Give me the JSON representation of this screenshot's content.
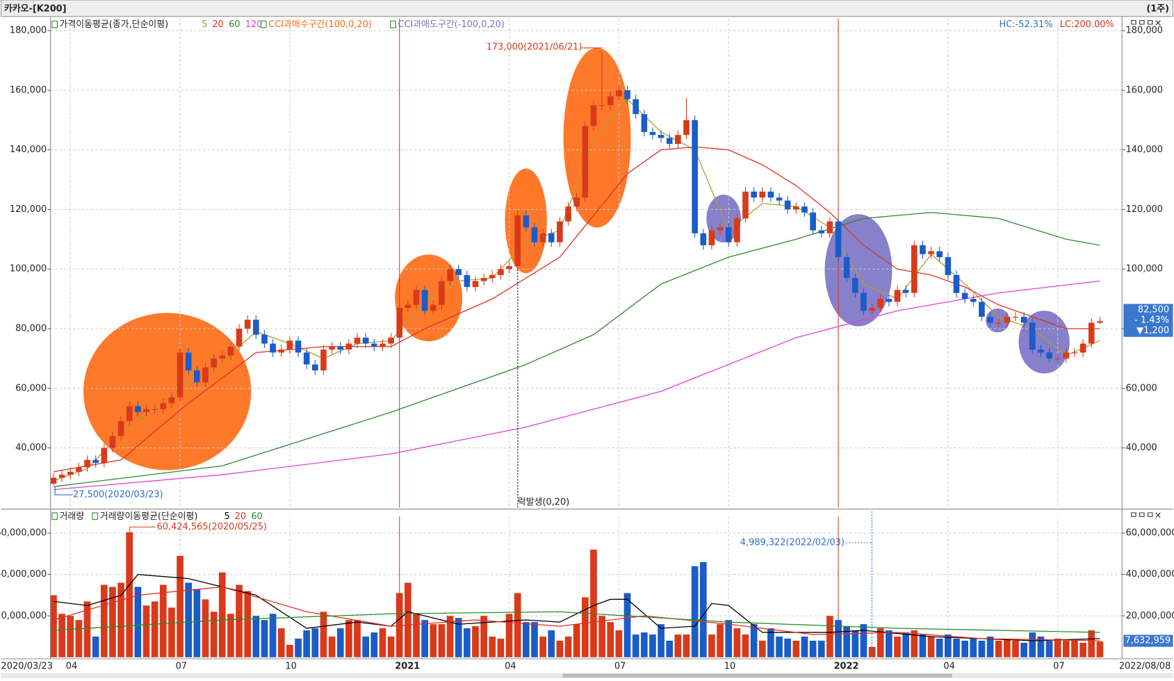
{
  "header": {
    "title": "카카오-[K200]",
    "period": "(1주)",
    "panel_icons": "ㅁㅁㅁ×"
  },
  "chart_data": [
    {
      "type": "candlestick",
      "legend_title": "가격이동평균(종가,단순이평)",
      "overbought_label": "CCI과매수구간(100,0,20)",
      "oversold_label": "CCI과매도구간(-100,0,20)",
      "hc": "HC:-52.31%",
      "lc": "LC:200.00%",
      "annotations": [
        "173,000(2021/06/21)",
        "27,500(2020/03/23)",
        "락발생(0,20)"
      ],
      "last_price": "82,500",
      "change_pct": "- 1.43%",
      "change": "▼1,200",
      "up_color": "#d93a1a",
      "down_color": "#1a5cc8",
      "grid": true,
      "ylim": [
        20000,
        184000
      ],
      "yticks": [
        {
          "value": 40000,
          "label": "40,000"
        },
        {
          "value": 60000,
          "label": "60,000"
        },
        {
          "value": 80000,
          "label": "80,000"
        },
        {
          "value": 100000,
          "label": "100,000"
        },
        {
          "value": 120000,
          "label": "120,000"
        },
        {
          "value": 140000,
          "label": "140,000"
        },
        {
          "value": 160000,
          "label": "160,000"
        },
        {
          "value": 180000,
          "label": "180,000"
        }
      ],
      "categories": [
        "2020/03/23",
        null,
        "04",
        null,
        null,
        null,
        null,
        null,
        null,
        null,
        null,
        null,
        null,
        null,
        null,
        "07",
        null,
        null,
        null,
        null,
        null,
        null,
        null,
        null,
        null,
        null,
        null,
        null,
        "10",
        null,
        null,
        null,
        null,
        null,
        null,
        null,
        null,
        null,
        null,
        null,
        null,
        "2021",
        null,
        null,
        null,
        null,
        null,
        null,
        null,
        null,
        null,
        null,
        null,
        null,
        "04",
        null,
        null,
        null,
        null,
        null,
        null,
        null,
        null,
        null,
        null,
        null,
        null,
        "07",
        null,
        null,
        null,
        null,
        null,
        null,
        null,
        null,
        null,
        null,
        null,
        null,
        "10",
        null,
        null,
        null,
        null,
        null,
        null,
        null,
        null,
        null,
        null,
        null,
        null,
        "2022",
        null,
        null,
        null,
        null,
        null,
        null,
        null,
        null,
        null,
        null,
        null,
        null,
        "04",
        null,
        null,
        null,
        null,
        null,
        null,
        null,
        null,
        null,
        null,
        null,
        null,
        "07",
        null,
        null,
        null,
        null,
        "2022/08/08"
      ],
      "open": [
        28000,
        30000,
        31000,
        32000,
        33500,
        36000,
        35000,
        40000,
        44000,
        49000,
        54000,
        52000,
        53000,
        53000,
        55000,
        57000,
        72000,
        66000,
        62000,
        67000,
        70000,
        71000,
        74000,
        80000,
        83000,
        78000,
        75000,
        72000,
        73000,
        76000,
        72000,
        68000,
        66000,
        73000,
        74000,
        73000,
        75000,
        77000,
        75000,
        74000,
        75000,
        77000,
        87000,
        88000,
        93000,
        86000,
        88000,
        96000,
        100000,
        98000,
        94000,
        96000,
        97000,
        98000,
        100000,
        101000,
        118000,
        114000,
        109000,
        112000,
        109000,
        116000,
        121000,
        124000,
        148000,
        155000,
        155000,
        158000,
        160000,
        157000,
        152000,
        146000,
        145000,
        144000,
        142000,
        145000,
        150000,
        112000,
        108000,
        113000,
        114000,
        109000,
        117000,
        126000,
        124000,
        126000,
        124000,
        123000,
        120000,
        121000,
        119000,
        113000,
        112000,
        116000,
        104000,
        97000,
        92000,
        86000,
        87000,
        90000,
        89000,
        93000,
        92000,
        108000,
        105000,
        106000,
        104000,
        98000,
        92000,
        90000,
        89000,
        84000,
        82000,
        82000,
        84000,
        84000,
        82000,
        73000,
        72000,
        70000,
        70000,
        72000,
        72000,
        75000,
        82000
      ],
      "high": [
        31500,
        32500,
        33500,
        35000,
        37500,
        37500,
        41500,
        45500,
        50500,
        55500,
        55500,
        54500,
        54500,
        56500,
        58500,
        73500,
        73500,
        67500,
        68500,
        71500,
        72500,
        75500,
        81500,
        84500,
        84500,
        79500,
        76500,
        74500,
        77500,
        77500,
        73500,
        69500,
        74500,
        75500,
        75500,
        76500,
        78500,
        78500,
        76500,
        76500,
        78500,
        88500,
        89500,
        94500,
        94500,
        89500,
        97500,
        101500,
        101500,
        99500,
        97500,
        98500,
        99500,
        101500,
        102500,
        119500,
        119500,
        115500,
        113500,
        113500,
        117500,
        122500,
        125500,
        149500,
        156500,
        173000,
        159500,
        161500,
        161500,
        158500,
        153500,
        147500,
        146500,
        145500,
        146500,
        157500,
        151500,
        113500,
        114500,
        115500,
        115500,
        118500,
        127500,
        127500,
        127500,
        127500,
        125500,
        124500,
        122500,
        122500,
        120500,
        114500,
        117500,
        117500,
        105500,
        98500,
        93500,
        88500,
        91500,
        91500,
        94500,
        94500,
        109500,
        109500,
        107500,
        107500,
        105500,
        99500,
        93500,
        91500,
        90500,
        85500,
        83500,
        85500,
        85500,
        85500,
        83500,
        74500,
        73500,
        71500,
        73500,
        73500,
        76500,
        83500,
        84000
      ],
      "low": [
        27500,
        28500,
        29500,
        30500,
        32000,
        33500,
        33500,
        38500,
        42500,
        47500,
        50500,
        50500,
        51500,
        51500,
        53500,
        55500,
        64500,
        60500,
        60500,
        65500,
        68500,
        69500,
        72500,
        78500,
        76500,
        73500,
        70500,
        70500,
        71500,
        70500,
        66500,
        64500,
        64500,
        71500,
        71500,
        71500,
        73500,
        73500,
        72500,
        72500,
        73500,
        75500,
        85500,
        86500,
        84500,
        84500,
        86500,
        94500,
        96500,
        92500,
        92500,
        94500,
        95500,
        96500,
        98500,
        99500,
        112500,
        107500,
        107500,
        107500,
        107500,
        114500,
        119500,
        122500,
        146500,
        153500,
        153500,
        156500,
        155500,
        150500,
        144500,
        143500,
        142500,
        140500,
        140500,
        143500,
        110500,
        106500,
        106500,
        111500,
        107500,
        107500,
        115500,
        122500,
        122500,
        122500,
        121500,
        118500,
        118500,
        117500,
        111500,
        110500,
        110500,
        102500,
        95500,
        90500,
        84500,
        84500,
        85500,
        87500,
        87500,
        90500,
        90500,
        103500,
        103500,
        102500,
        96500,
        90500,
        88500,
        87500,
        82500,
        80500,
        80500,
        80500,
        82500,
        80500,
        71500,
        70500,
        68500,
        68500,
        68500,
        70500,
        70500,
        73500,
        81500
      ],
      "close": [
        30000,
        31000,
        32000,
        33500,
        36000,
        35000,
        40000,
        44000,
        49000,
        54000,
        52000,
        53000,
        53000,
        55000,
        57000,
        72000,
        66000,
        62000,
        67000,
        70000,
        71000,
        74000,
        80000,
        83000,
        78000,
        75000,
        72000,
        73000,
        76000,
        72000,
        68000,
        66000,
        73000,
        74000,
        73000,
        75000,
        77000,
        75000,
        74000,
        75000,
        77000,
        87000,
        88000,
        93000,
        86000,
        88000,
        96000,
        100000,
        98000,
        94000,
        96000,
        97000,
        98000,
        100000,
        101000,
        118000,
        114000,
        109000,
        112000,
        109000,
        116000,
        121000,
        124000,
        148000,
        155000,
        155000,
        158000,
        160000,
        157000,
        152000,
        146000,
        145000,
        144000,
        142000,
        145000,
        150000,
        112000,
        108000,
        113000,
        114000,
        109000,
        117000,
        126000,
        124000,
        126000,
        124000,
        123000,
        120000,
        121000,
        119000,
        113000,
        112000,
        116000,
        104000,
        97000,
        92000,
        86000,
        87000,
        90000,
        89000,
        93000,
        92000,
        108000,
        105000,
        106000,
        104000,
        98000,
        92000,
        90000,
        89000,
        84000,
        82000,
        82000,
        84000,
        84000,
        82000,
        73000,
        72000,
        70000,
        70000,
        72000,
        72000,
        75000,
        82000,
        82500
      ],
      "series": [
        {
          "name": "5",
          "color": "#a8a030",
          "x": [
            0,
            4,
            8,
            12,
            16,
            20,
            24,
            28,
            32,
            36,
            40,
            44,
            48,
            52,
            56,
            60,
            64,
            68,
            72,
            76,
            80,
            84,
            88,
            92,
            96,
            100,
            104,
            108,
            112,
            116,
            120,
            124
          ],
          "values": [
            29000,
            33000,
            45000,
            53000,
            62000,
            69000,
            79000,
            75000,
            70000,
            75000,
            76000,
            89000,
            96000,
            97000,
            109000,
            113000,
            143000,
            157000,
            146000,
            140000,
            113000,
            122000,
            121000,
            114000,
            95000,
            90000,
            105000,
            95000,
            84000,
            80000,
            71000,
            76000
          ]
        },
        {
          "name": "20",
          "color": "#e03020",
          "x": [
            0,
            8,
            16,
            24,
            32,
            40,
            44,
            52,
            56,
            60,
            64,
            68,
            72,
            76,
            80,
            84,
            88,
            92,
            96,
            100,
            104,
            108,
            112,
            116,
            120,
            124
          ],
          "values": [
            32000,
            36000,
            55000,
            72000,
            74000,
            74000,
            80000,
            90000,
            97000,
            104000,
            118000,
            132000,
            140000,
            141000,
            140000,
            135000,
            128000,
            119000,
            108000,
            100000,
            98000,
            94000,
            88000,
            84000,
            80000,
            80000
          ]
        },
        {
          "name": "60",
          "color": "#2a8a2a",
          "x": [
            0,
            20,
            40,
            56,
            64,
            72,
            80,
            88,
            96,
            104,
            112,
            120,
            124
          ],
          "values": [
            27000,
            34000,
            52000,
            68000,
            78000,
            95000,
            104000,
            110000,
            117000,
            119000,
            117000,
            110000,
            108000
          ]
        },
        {
          "name": "120",
          "color": "#e040e0",
          "x": [
            0,
            20,
            40,
            56,
            72,
            88,
            100,
            112,
            124
          ],
          "values": [
            26000,
            31000,
            38000,
            47000,
            59000,
            77000,
            86000,
            92000,
            96000
          ]
        }
      ]
    },
    {
      "type": "bar",
      "legend_label": "거래량",
      "legend_title": "거래량이동평균(단순이평)",
      "annotations": [
        "60,424,565(2020/05/25)",
        "4,989,322(2022/02/03)"
      ],
      "last_value": "7,632,959",
      "grid": true,
      "ylim": [
        0,
        68000000
      ],
      "yticks": [
        {
          "value": 20000000,
          "label": "20,000,000"
        },
        {
          "value": 40000000,
          "label": "40,000,000"
        },
        {
          "value": 60000000,
          "label": "60,000,000"
        }
      ],
      "values": [
        30000000,
        21000000,
        20000000,
        18000000,
        27000000,
        10000000,
        35000000,
        34000000,
        36000000,
        60424565,
        34000000,
        25000000,
        27000000,
        35000000,
        24000000,
        49000000,
        36000000,
        33000000,
        28000000,
        22000000,
        41000000,
        21000000,
        35000000,
        32000000,
        20000000,
        18000000,
        21000000,
        14000000,
        6000000,
        9000000,
        13000000,
        14000000,
        22000000,
        10000000,
        14000000,
        18000000,
        18000000,
        10000000,
        12000000,
        14000000,
        10000000,
        31000000,
        36000000,
        21000000,
        18000000,
        16000000,
        16000000,
        20000000,
        19000000,
        14000000,
        15000000,
        20000000,
        10000000,
        9000000,
        21000000,
        31000000,
        17000000,
        17000000,
        10000000,
        13000000,
        8000000,
        10000000,
        16000000,
        29000000,
        52000000,
        20000000,
        17000000,
        13000000,
        31000000,
        11000000,
        12000000,
        11000000,
        16000000,
        8000000,
        11000000,
        11000000,
        44000000,
        46000000,
        11000000,
        16000000,
        18000000,
        14000000,
        11000000,
        16000000,
        8000000,
        14000000,
        10000000,
        9000000,
        8000000,
        10000000,
        8000000,
        8000000,
        20000000,
        18000000,
        15000000,
        13000000,
        16000000,
        4989322,
        14000000,
        13000000,
        10000000,
        12000000,
        13000000,
        11000000,
        10000000,
        9000000,
        11000000,
        9000000,
        8000000,
        9000000,
        8000000,
        10000000,
        8000000,
        9000000,
        8000000,
        7000000,
        12000000,
        10000000,
        8000000,
        9000000,
        8000000,
        8000000,
        7000000,
        13000000,
        7632959
      ],
      "series": [
        {
          "name": "5",
          "color": "#000000",
          "x": [
            0,
            4,
            8,
            10,
            16,
            20,
            24,
            30,
            36,
            40,
            42,
            48,
            56,
            60,
            64,
            66,
            68,
            72,
            76,
            78,
            80,
            84,
            92,
            96,
            104,
            116,
            124
          ],
          "values": [
            27000000,
            25000000,
            30000000,
            40000000,
            38000000,
            34000000,
            30000000,
            14000000,
            17000000,
            15000000,
            22000000,
            16000000,
            18000000,
            17000000,
            25000000,
            28000000,
            28000000,
            14000000,
            15000000,
            26000000,
            25000000,
            12000000,
            12000000,
            13000000,
            10000000,
            8000000,
            9000000
          ]
        },
        {
          "name": "20",
          "color": "#e03020",
          "x": [
            0,
            10,
            20,
            30,
            40,
            50,
            60,
            70,
            80,
            90,
            100,
            110,
            124
          ],
          "values": [
            18000000,
            30000000,
            34000000,
            22000000,
            15000000,
            18000000,
            15000000,
            20000000,
            16000000,
            11000000,
            12000000,
            9000000,
            8000000
          ]
        },
        {
          "name": "60",
          "color": "#2a8a2a",
          "x": [
            0,
            20,
            40,
            60,
            80,
            100,
            124
          ],
          "values": [
            13000000,
            18000000,
            21000000,
            22000000,
            17000000,
            14000000,
            12000000
          ]
        }
      ]
    }
  ]
}
